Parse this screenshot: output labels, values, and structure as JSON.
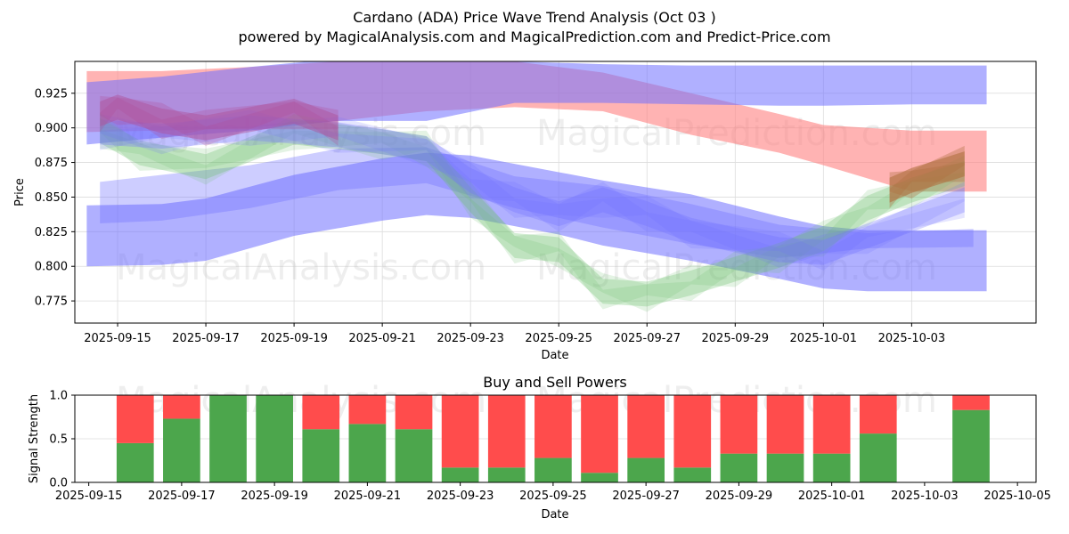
{
  "title": "Cardano (ADA) Price Wave Trend Analysis (Oct 03 )",
  "subtitle": "powered by MagicalAnalysis.com and MagicalPrediction.com and Predict-Price.com",
  "watermarks": [
    "MagicalAnalysis.com",
    "MagicalPrediction.com"
  ],
  "colors": {
    "buy": "#4ca64c",
    "sell": "#ff4c4c",
    "band_red": "#ff8080",
    "band_blue": "#6f6fff",
    "band_green": "#6abf6a",
    "band_purple": "#b04f99"
  },
  "chart_data": [
    {
      "type": "area",
      "title": "",
      "xlabel": "Date",
      "ylabel": "Price",
      "ylim": [
        0.759,
        0.948
      ],
      "xlim": [
        "2025-09-14",
        "2025-10-05"
      ],
      "yticks": [
        "0.775",
        "0.800",
        "0.825",
        "0.850",
        "0.875",
        "0.900",
        "0.925"
      ],
      "ytick_values": [
        0.775,
        0.8,
        0.825,
        0.85,
        0.875,
        0.9,
        0.925
      ],
      "xticks": [
        "2025-09-15",
        "2025-09-17",
        "2025-09-19",
        "2025-09-21",
        "2025-09-23",
        "2025-09-25",
        "2025-09-27",
        "2025-09-29",
        "2025-10-01",
        "2025-10-03"
      ],
      "grid": true,
      "bands": [
        {
          "name": "long-term-red",
          "color": "red",
          "opacity": 0.6,
          "x": [
            "2025-09-14.3",
            "2025-09-16",
            "2025-09-18",
            "2025-09-20",
            "2025-09-22",
            "2025-09-24",
            "2025-09-26",
            "2025-09-28",
            "2025-09-30",
            "2025-10-01",
            "2025-10-03",
            "2025-10-04.7"
          ],
          "upper": [
            0.941,
            0.941,
            0.944,
            0.948,
            0.95,
            0.948,
            0.94,
            0.925,
            0.91,
            0.902,
            0.898,
            0.898
          ],
          "lower": [
            0.897,
            0.898,
            0.9,
            0.905,
            0.912,
            0.915,
            0.912,
            0.895,
            0.882,
            0.873,
            0.854,
            0.854
          ]
        },
        {
          "name": "long-term-blue-top",
          "color": "blue",
          "opacity": 0.55,
          "x": [
            "2025-09-14.3",
            "2025-09-16",
            "2025-09-18",
            "2025-09-20",
            "2025-09-22",
            "2025-09-24",
            "2025-09-26",
            "2025-09-28",
            "2025-09-30",
            "2025-10-01",
            "2025-10-03",
            "2025-10-04.7"
          ],
          "upper": [
            0.933,
            0.937,
            0.944,
            0.95,
            0.952,
            0.948,
            0.946,
            0.945,
            0.945,
            0.945,
            0.945,
            0.945
          ],
          "lower": [
            0.888,
            0.893,
            0.898,
            0.905,
            0.905,
            0.918,
            0.918,
            0.917,
            0.916,
            0.916,
            0.917,
            0.917
          ]
        },
        {
          "name": "long-term-blue-bottom",
          "color": "blue",
          "opacity": 0.55,
          "x": [
            "2025-09-14.3",
            "2025-09-16",
            "2025-09-17",
            "2025-09-19",
            "2025-09-21",
            "2025-09-22",
            "2025-09-23",
            "2025-09-25",
            "2025-09-26",
            "2025-09-28",
            "2025-09-30",
            "2025-10-01",
            "2025-10-02",
            "2025-10-04.7"
          ],
          "upper": [
            0.844,
            0.845,
            0.849,
            0.866,
            0.878,
            0.882,
            0.88,
            0.868,
            0.862,
            0.852,
            0.836,
            0.829,
            0.826,
            0.826
          ],
          "lower": [
            0.8,
            0.801,
            0.804,
            0.822,
            0.833,
            0.837,
            0.835,
            0.823,
            0.815,
            0.804,
            0.791,
            0.784,
            0.782,
            0.782
          ]
        },
        {
          "name": "mid-term-blue",
          "color": "blue",
          "opacity": 0.35,
          "x": [
            "2025-09-14.6",
            "2025-09-16",
            "2025-09-18",
            "2025-09-20",
            "2025-09-22",
            "2025-09-24",
            "2025-09-26",
            "2025-09-28",
            "2025-09-30",
            "2025-10-02",
            "2025-10-04.4"
          ],
          "upper": [
            0.861,
            0.866,
            0.873,
            0.885,
            0.886,
            0.865,
            0.858,
            0.845,
            0.83,
            0.824,
            0.827
          ],
          "lower": [
            0.831,
            0.833,
            0.842,
            0.855,
            0.86,
            0.842,
            0.828,
            0.816,
            0.806,
            0.813,
            0.814
          ]
        },
        {
          "name": "short-term-green",
          "color": "green",
          "opacity": 0.3,
          "x": [
            "2025-09-14.6",
            "2025-09-15.5",
            "2025-09-17",
            "2025-09-19",
            "2025-09-21",
            "2025-09-22",
            "2025-09-23",
            "2025-09-24",
            "2025-09-25",
            "2025-09-26",
            "2025-09-27",
            "2025-09-28",
            "2025-09-29",
            "2025-09-30",
            "2025-10-01",
            "2025-10-02",
            "2025-10-03",
            "2025-10-04.2"
          ],
          "center": [
            0.898,
            0.882,
            0.872,
            0.897,
            0.89,
            0.885,
            0.848,
            0.815,
            0.812,
            0.782,
            0.78,
            0.788,
            0.798,
            0.808,
            0.82,
            0.842,
            0.855,
            0.867
          ]
        },
        {
          "name": "short-term-blue",
          "color": "blue",
          "opacity": 0.3,
          "x": [
            "2025-09-14.6",
            "2025-09-16",
            "2025-09-18",
            "2025-09-20",
            "2025-09-22",
            "2025-09-23",
            "2025-09-24",
            "2025-09-25",
            "2025-09-26",
            "2025-09-27",
            "2025-09-28",
            "2025-09-30",
            "2025-10-01",
            "2025-10-02",
            "2025-10-04.2"
          ],
          "center": [
            0.897,
            0.894,
            0.9,
            0.895,
            0.885,
            0.862,
            0.848,
            0.838,
            0.848,
            0.838,
            0.826,
            0.812,
            0.81,
            0.822,
            0.848
          ]
        },
        {
          "name": "short-term-purple",
          "color": "purple",
          "opacity": 0.45,
          "x": [
            "2025-09-14.6",
            "2025-09-15",
            "2025-09-16",
            "2025-09-17",
            "2025-09-19",
            "2025-09-20"
          ],
          "center": [
            0.91,
            0.915,
            0.905,
            0.9,
            0.912,
            0.9
          ]
        },
        {
          "name": "short-term-brown",
          "color": "brown",
          "opacity": 0.6,
          "x": [
            "2025-10-02.5",
            "2025-10-03",
            "2025-10-04.2"
          ],
          "center": [
            0.855,
            0.862,
            0.874
          ]
        }
      ]
    },
    {
      "type": "bar",
      "title": "Buy and Sell Powers",
      "xlabel": "Date",
      "ylabel": "Signal Strength",
      "ylim": [
        0.0,
        1.0
      ],
      "yticks": [
        "0.0",
        "0.5",
        "1.0"
      ],
      "ytick_values": [
        0.0,
        0.5,
        1.0
      ],
      "xlim": [
        "2025-09-14.7",
        "2025-10-05.4"
      ],
      "xticks": [
        "2025-09-15",
        "2025-09-17",
        "2025-09-19",
        "2025-09-21",
        "2025-09-23",
        "2025-09-25",
        "2025-09-27",
        "2025-09-29",
        "2025-10-01",
        "2025-10-03",
        "2025-10-05"
      ],
      "grid": true,
      "categories": [
        "2025-09-16",
        "2025-09-17",
        "2025-09-18",
        "2025-09-19",
        "2025-09-20",
        "2025-09-21",
        "2025-09-22",
        "2025-09-23",
        "2025-09-24",
        "2025-09-25",
        "2025-09-26",
        "2025-09-27",
        "2025-09-28",
        "2025-09-29",
        "2025-09-30",
        "2025-10-01",
        "2025-10-02",
        "2025-10-04"
      ],
      "series": [
        {
          "name": "Buy",
          "color": "green",
          "values": [
            0.45,
            0.73,
            1.0,
            1.0,
            0.61,
            0.67,
            0.61,
            0.17,
            0.17,
            0.28,
            0.11,
            0.28,
            0.17,
            0.33,
            0.33,
            0.33,
            0.56,
            0.83
          ]
        },
        {
          "name": "Sell",
          "color": "red",
          "values": [
            0.55,
            0.27,
            0.0,
            0.0,
            0.39,
            0.33,
            0.39,
            0.83,
            0.83,
            0.72,
            0.89,
            0.72,
            0.83,
            0.67,
            0.67,
            0.67,
            0.44,
            0.17
          ]
        }
      ]
    }
  ]
}
